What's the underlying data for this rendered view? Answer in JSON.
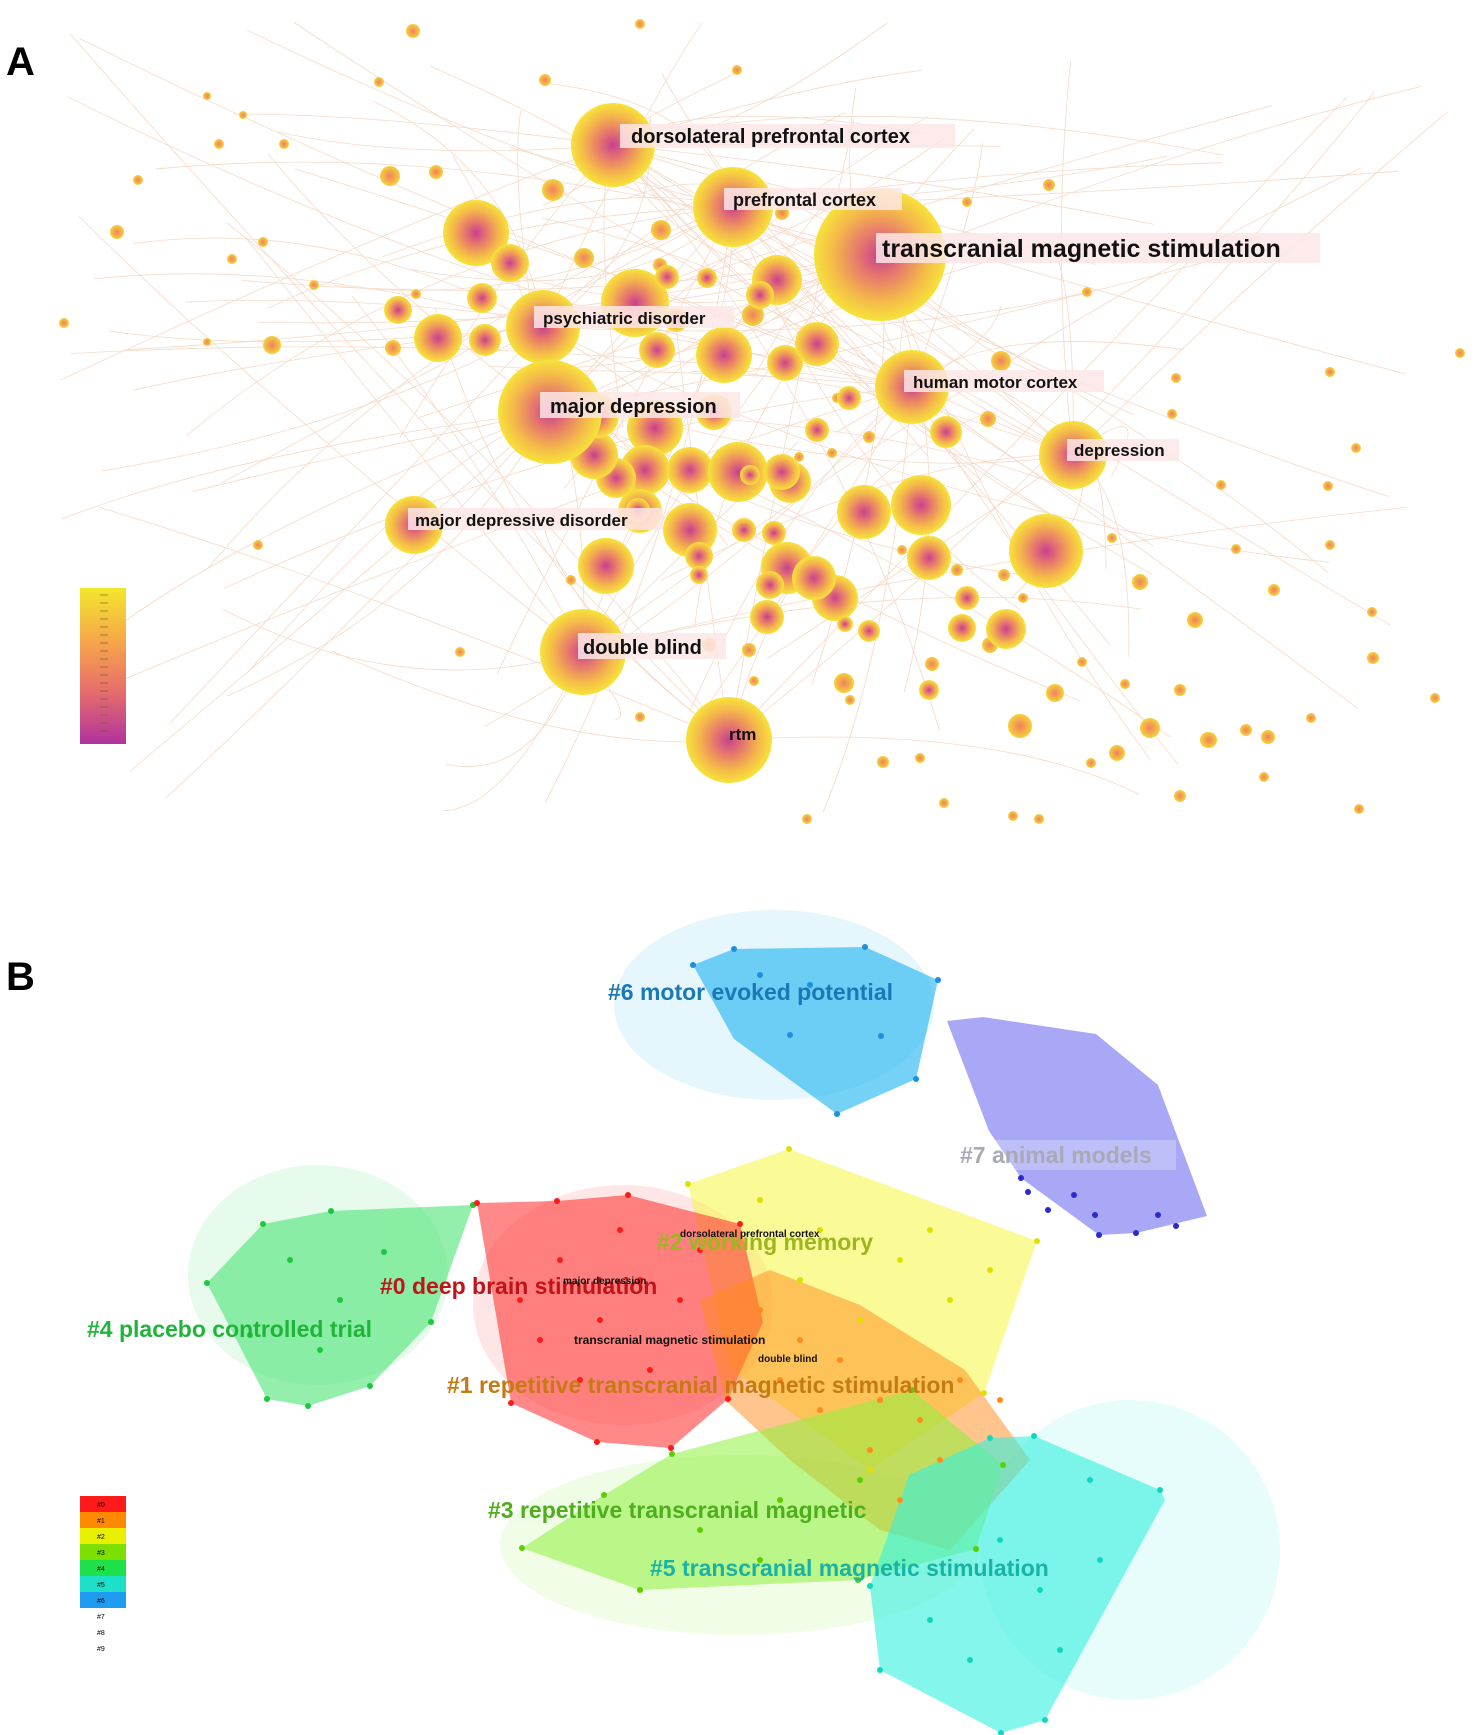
{
  "panels": {
    "a": {
      "letter": "A"
    },
    "b": {
      "letter": "B"
    }
  },
  "network": {
    "labeled_nodes": [
      {
        "id": "dlpfc",
        "label": "dorsolateral prefrontal cortex"
      },
      {
        "id": "pfc",
        "label": "prefrontal cortex"
      },
      {
        "id": "tms",
        "label": "transcranial magnetic stimulation"
      },
      {
        "id": "psych",
        "label": "psychiatric disorder"
      },
      {
        "id": "hmc",
        "label": "human motor cortex"
      },
      {
        "id": "majdep",
        "label": "major depression"
      },
      {
        "id": "dep",
        "label": "depression"
      },
      {
        "id": "mdd",
        "label": "major depressive disorder"
      },
      {
        "id": "db",
        "label": "double blind"
      },
      {
        "id": "rtm",
        "label": "rtm"
      }
    ],
    "colorbar_colors": [
      "#f2e62a",
      "#f6a14a",
      "#e8706a",
      "#c8458c",
      "#b0379a"
    ]
  },
  "clusters": {
    "items": [
      {
        "id": "c0",
        "label": "#0 deep brain stimulation",
        "color": "#ff3b3b",
        "text_color": "#c0141a"
      },
      {
        "id": "c1",
        "label": "#1 repetitive transcranial magnetic stimulation",
        "color": "#ff8c1a",
        "text_color": "#c57a12"
      },
      {
        "id": "c2",
        "label": "#2 working memory",
        "color": "#f5f542",
        "text_color": "#9db51e"
      },
      {
        "id": "c3",
        "label": "#3 repetitive transcranial magnetic",
        "color": "#8ef03c",
        "text_color": "#4fae1c"
      },
      {
        "id": "c4",
        "label": "#4 placebo controlled trial",
        "color": "#3de26a",
        "text_color": "#21b43a"
      },
      {
        "id": "c5",
        "label": "#5 transcranial magnetic stimulation",
        "color": "#33f0e0",
        "text_color": "#18b3a4"
      },
      {
        "id": "c6",
        "label": "#6 motor evoked potential",
        "color": "#2bb8ef",
        "text_color": "#1b78b8"
      },
      {
        "id": "c7",
        "label": "#7 animal models",
        "color": "#6e6ef0",
        "text_color": "#a9a9b8"
      }
    ],
    "inner_labels": [
      {
        "id": "i1",
        "label": "dorsolateral prefrontal cortex"
      },
      {
        "id": "i2",
        "label": "major depression"
      },
      {
        "id": "i3",
        "label": "transcranial magnetic stimulation"
      },
      {
        "id": "i4",
        "label": "double blind"
      }
    ],
    "legend": [
      {
        "label": "#0",
        "color": "#ff1a1a"
      },
      {
        "label": "#1",
        "color": "#ff8a00"
      },
      {
        "label": "#2",
        "color": "#e8f000"
      },
      {
        "label": "#3",
        "color": "#7ee000"
      },
      {
        "label": "#4",
        "color": "#1ee04a"
      },
      {
        "label": "#5",
        "color": "#1ee0c8"
      },
      {
        "label": "#6",
        "color": "#1e9cf0"
      },
      {
        "label": "#7",
        "color": ""
      },
      {
        "label": "#8",
        "color": ""
      },
      {
        "label": "#9",
        "color": ""
      }
    ]
  }
}
